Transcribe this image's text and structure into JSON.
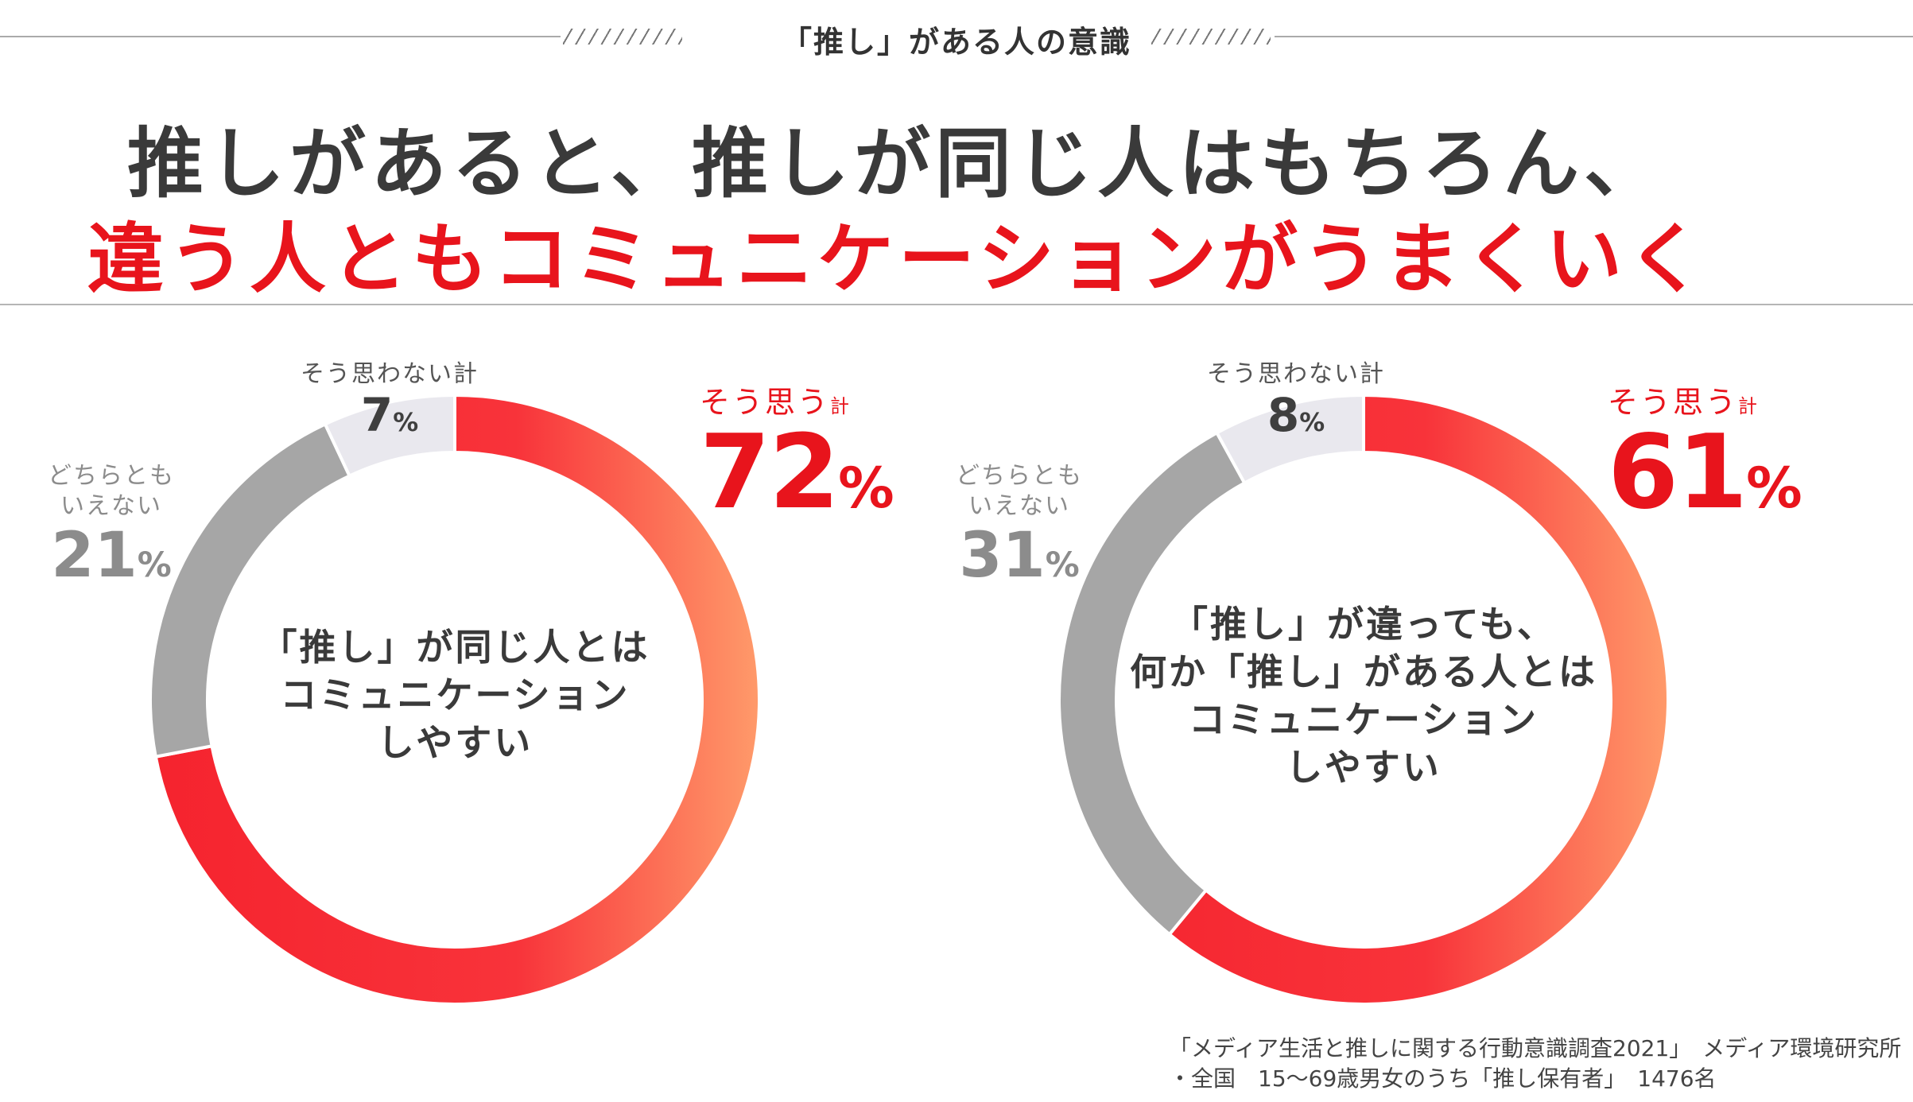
{
  "section_title": "「推し」がある人の意識",
  "headline": {
    "line1": "推しがあると、推しが同じ人はもちろん、",
    "line2": "違う人ともコミュニケーションがうまくいく"
  },
  "colors": {
    "agree_start": "#f5232e",
    "agree_end": "#ff9a6a",
    "neutral": "#a6a6a6",
    "disagree": "#e9e8ee",
    "accent": "#e8141c"
  },
  "chart_data": [
    {
      "type": "pie",
      "title": "「推し」が同じ人とはコミュニケーションしやすい",
      "center_lines": [
        "「推し」が同じ人とは",
        "コミュニケーション",
        "しやすい"
      ],
      "categories": [
        "そう思う計",
        "どちらともいえない",
        "そう思わない計"
      ],
      "values": [
        72,
        21,
        7
      ],
      "labels": {
        "agree": {
          "name": "そう思う",
          "suffix": "計",
          "value": "72",
          "unit": "%"
        },
        "neutral": {
          "line1": "どちらとも",
          "line2": "いえない",
          "value": "21",
          "unit": "%"
        },
        "disagree": {
          "name": "そう思わない計",
          "value": "7",
          "unit": "%"
        }
      }
    },
    {
      "type": "pie",
      "title": "「推し」が違っても、何か「推し」がある人とはコミュニケーションしやすい",
      "center_lines": [
        "「推し」が違っても、",
        "何か「推し」がある人とは",
        "コミュニケーション",
        "しやすい"
      ],
      "categories": [
        "そう思う計",
        "どちらともいえない",
        "そう思わない計"
      ],
      "values": [
        61,
        31,
        8
      ],
      "labels": {
        "agree": {
          "name": "そう思う",
          "suffix": "計",
          "value": "61",
          "unit": "%"
        },
        "neutral": {
          "line1": "どちらとも",
          "line2": "いえない",
          "value": "31",
          "unit": "%"
        },
        "disagree": {
          "name": "そう思わない計",
          "value": "8",
          "unit": "%"
        }
      }
    }
  ],
  "footnote": {
    "line1": "「メディア生活と推しに関する行動意識調査2021」　メディア環境研究所",
    "line2": "・全国　15～69歳男女のうち「推し保有者」　1476名"
  }
}
